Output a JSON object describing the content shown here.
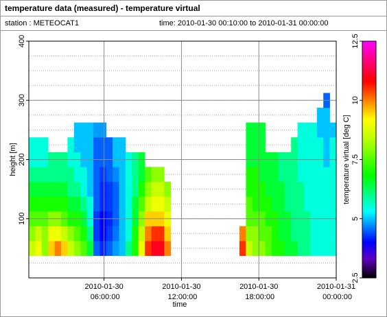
{
  "chart_data": {
    "type": "heatmap",
    "title": "temperature data (measured) - temperature virtual",
    "station": "station : METEOCAT1",
    "time_range": "time: 2010-01-30 00:10:00 to 2010-01-31 00:00:00",
    "xlabel": "time",
    "ylabel": "height [m]",
    "colorbar_label": "temperature virtual [deg C]",
    "xlim": [
      "2010-01-30 00:10:00",
      "2010-01-31 00:00:00"
    ],
    "xticks": [
      "2010-01-30 06:00:00",
      "2010-01-30 12:00:00",
      "2010-01-30 18:00:00",
      "2010-01-31 00:00:00"
    ],
    "ylim": [
      0,
      400
    ],
    "yticks": [
      100,
      200,
      300,
      400
    ],
    "grid": true,
    "minor_grid_step": 25,
    "zlim": [
      2.5,
      12.5
    ],
    "zticks": [
      2.5,
      5,
      7.5,
      10,
      12.5
    ],
    "colorscale": [
      [
        2.5,
        "#000000"
      ],
      [
        3.3,
        "#6000c0"
      ],
      [
        4,
        "#0000ff"
      ],
      [
        5.3,
        "#00ffff"
      ],
      [
        6.8,
        "#00ff00"
      ],
      [
        8.5,
        "#c8ff00"
      ],
      [
        9.2,
        "#ffff00"
      ],
      [
        10,
        "#ff8000"
      ],
      [
        10.8,
        "#ff0000"
      ],
      [
        11.7,
        "#ff0080"
      ],
      [
        12.5,
        "#ff00ff"
      ]
    ],
    "cell_minutes": 30,
    "cell_height": 25,
    "x": [
      "2010-01-30 00:25:00",
      "2010-01-30 00:55:00",
      "2010-01-30 01:25:00",
      "2010-01-30 01:55:00",
      "2010-01-30 02:25:00",
      "2010-01-30 02:55:00",
      "2010-01-30 03:25:00",
      "2010-01-30 03:55:00",
      "2010-01-30 04:25:00",
      "2010-01-30 04:55:00",
      "2010-01-30 05:25:00",
      "2010-01-30 05:55:00",
      "2010-01-30 06:25:00",
      "2010-01-30 06:55:00",
      "2010-01-30 07:25:00",
      "2010-01-30 07:55:00",
      "2010-01-30 08:25:00",
      "2010-01-30 08:55:00",
      "2010-01-30 09:25:00",
      "2010-01-30 09:55:00",
      "2010-01-30 10:25:00",
      "2010-01-30 10:55:00",
      "2010-01-30 16:45:00",
      "2010-01-30 17:15:00",
      "2010-01-30 17:45:00",
      "2010-01-30 18:15:00",
      "2010-01-30 18:45:00",
      "2010-01-30 19:15:00",
      "2010-01-30 19:45:00",
      "2010-01-30 20:15:00",
      "2010-01-30 20:45:00",
      "2010-01-30 21:15:00",
      "2010-01-30 21:45:00",
      "2010-01-30 22:15:00",
      "2010-01-30 22:45:00",
      "2010-01-30 23:15:00",
      "2010-01-30 23:45:00"
    ],
    "y": [
      50,
      75,
      100,
      125,
      150,
      175,
      200,
      225,
      250,
      275,
      300,
      325
    ],
    "values": [
      [
        8.5,
        9,
        8,
        9.5,
        10,
        9.5,
        8.5,
        8,
        7.5,
        6.5,
        4.5,
        4.2,
        4.5,
        4.8,
        5,
        6,
        7,
        9,
        10.5,
        11,
        11,
        10,
        10.5,
        8.5,
        8,
        8,
        7.5,
        7,
        7,
        6.5,
        6.5,
        6,
        6,
        5.5,
        5.5,
        5.5,
        5.5
      ],
      [
        8,
        8.5,
        8,
        9,
        9,
        8.5,
        8,
        7.5,
        7,
        6,
        4.3,
        4,
        4.3,
        4.6,
        5,
        5.5,
        7,
        8.5,
        10,
        10.5,
        10.5,
        9.5,
        10,
        8,
        8,
        7.5,
        7.5,
        7,
        6.5,
        6.5,
        6,
        6,
        6,
        5.5,
        5.5,
        5.5,
        5.5
      ],
      [
        7.5,
        7.5,
        7.5,
        8,
        8,
        7.5,
        7,
        7,
        6.5,
        5.5,
        4.3,
        4,
        4.2,
        4.5,
        5,
        5.5,
        6.5,
        8,
        9.5,
        9.5,
        9.5,
        9,
        null,
        7.5,
        7.5,
        7.5,
        7,
        7,
        6.5,
        6.5,
        6,
        6,
        6,
        5.5,
        5.5,
        5.5,
        5.5
      ],
      [
        7,
        7,
        7,
        7,
        7,
        7,
        6.5,
        6.5,
        6,
        5.5,
        4.5,
        4.2,
        4.3,
        4.5,
        5,
        5.5,
        6.5,
        7.5,
        8.5,
        9,
        9,
        8.5,
        null,
        7.5,
        7,
        7,
        7,
        6.5,
        6.5,
        6,
        6,
        6,
        5.5,
        5.5,
        5.5,
        5.5,
        5.5
      ],
      [
        6.5,
        6.5,
        6.5,
        6.5,
        6.5,
        6.5,
        6,
        6,
        5.5,
        5,
        4.5,
        4.2,
        4.3,
        4.5,
        5,
        5.5,
        6,
        7,
        8,
        8.5,
        8.5,
        8,
        null,
        7,
        7,
        7,
        6.5,
        6.5,
        6.5,
        6,
        6,
        6,
        5.5,
        5.5,
        5.5,
        5.5,
        5.5
      ],
      [
        6,
        6,
        6,
        6,
        6,
        6,
        6,
        5.5,
        5.5,
        5,
        4.5,
        4.3,
        4.5,
        4.7,
        5,
        5.5,
        6,
        6.5,
        7.5,
        8,
        8,
        null,
        null,
        7,
        7,
        6.5,
        6.5,
        6.5,
        6,
        6,
        6,
        5.5,
        5.5,
        5.5,
        5.5,
        5.5,
        5.5
      ],
      [
        5.5,
        5.5,
        5.5,
        6,
        6,
        6,
        5.5,
        5.5,
        5,
        5,
        4.5,
        4.5,
        4.5,
        5,
        5,
        5.5,
        6,
        6.5,
        null,
        null,
        null,
        null,
        null,
        6.5,
        6.5,
        6.5,
        6.5,
        6.5,
        6,
        6,
        6,
        5.5,
        5.5,
        5.5,
        5.5,
        5,
        5.5
      ],
      [
        5.5,
        5.5,
        5.5,
        null,
        null,
        null,
        5.5,
        5,
        5,
        5,
        4.5,
        4.5,
        4.5,
        5,
        5,
        null,
        null,
        null,
        null,
        null,
        null,
        null,
        null,
        6.5,
        6.5,
        6.5,
        null,
        null,
        null,
        null,
        6,
        5.5,
        5.5,
        5.5,
        5.5,
        5,
        5.5
      ],
      [
        null,
        null,
        null,
        null,
        null,
        null,
        null,
        5,
        5,
        5,
        4.8,
        4.8,
        null,
        null,
        null,
        null,
        null,
        null,
        null,
        null,
        null,
        null,
        null,
        6.5,
        6.5,
        6.5,
        null,
        null,
        null,
        null,
        null,
        5.5,
        5.5,
        5.5,
        5,
        5,
        5
      ],
      [
        null,
        null,
        null,
        null,
        null,
        null,
        null,
        null,
        null,
        null,
        null,
        null,
        null,
        null,
        null,
        null,
        null,
        null,
        null,
        null,
        null,
        null,
        null,
        null,
        null,
        null,
        null,
        null,
        null,
        null,
        null,
        null,
        null,
        null,
        5,
        5,
        null
      ],
      [
        null,
        null,
        null,
        null,
        null,
        null,
        null,
        null,
        null,
        null,
        null,
        null,
        null,
        null,
        null,
        null,
        null,
        null,
        null,
        null,
        null,
        null,
        null,
        null,
        null,
        null,
        null,
        null,
        null,
        null,
        null,
        null,
        null,
        null,
        null,
        4.5,
        null
      ],
      [
        null,
        null,
        null,
        null,
        null,
        null,
        null,
        null,
        null,
        null,
        null,
        null,
        null,
        null,
        null,
        null,
        null,
        null,
        null,
        null,
        null,
        null,
        null,
        null,
        null,
        null,
        null,
        null,
        null,
        null,
        null,
        null,
        null,
        null,
        null,
        null,
        null
      ]
    ]
  }
}
